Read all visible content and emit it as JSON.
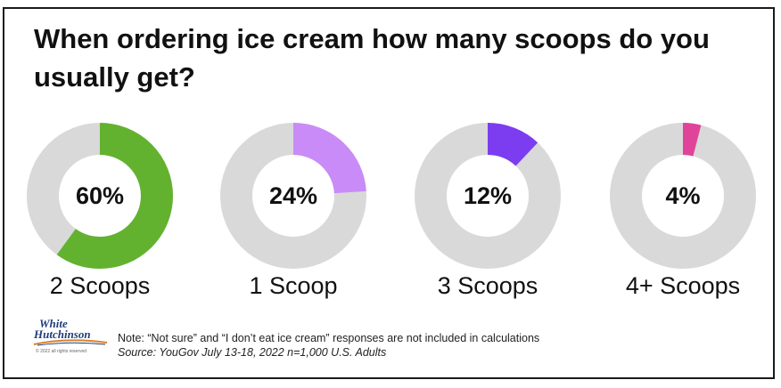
{
  "title": "When ordering ice cream how many scoops do you usually get?",
  "chart_data": [
    {
      "type": "pie",
      "category": "2 Scoops",
      "value": 60,
      "value_label": "60%",
      "color": "#62b22f",
      "track_color": "#d9d9d9"
    },
    {
      "type": "pie",
      "category": "1 Scoop",
      "value": 24,
      "value_label": "24%",
      "color": "#c98bf7",
      "track_color": "#d9d9d9"
    },
    {
      "type": "pie",
      "category": "3 Scoops",
      "value": 12,
      "value_label": "12%",
      "color": "#7c3df0",
      "track_color": "#d9d9d9"
    },
    {
      "type": "pie",
      "category": "4+ Scoops",
      "value": 4,
      "value_label": "4%",
      "color": "#e0449a",
      "track_color": "#d9d9d9"
    }
  ],
  "logo": {
    "line1": "White",
    "line2": "Hutchinson",
    "copyright": "© 2022 all rights reserved"
  },
  "footer": {
    "note": "Note: “Not sure” and “I don’t eat ice cream” responses are not included in calculations",
    "source": "Source: YouGov July 13-18, 2022 n=1,000 U.S. Adults"
  }
}
